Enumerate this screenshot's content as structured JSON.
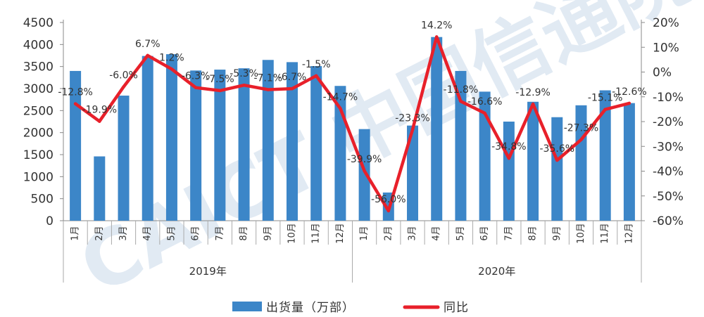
{
  "chart_data": {
    "type": "bar+line",
    "categories": [
      "1月",
      "2月",
      "3月",
      "4月",
      "5月",
      "6月",
      "7月",
      "8月",
      "9月",
      "10月",
      "11月",
      "12月",
      "1月",
      "2月",
      "3月",
      "4月",
      "5月",
      "6月",
      "7月",
      "8月",
      "9月",
      "10月",
      "11月",
      "12月"
    ],
    "groups": [
      {
        "label": "2019年",
        "count": 12
      },
      {
        "label": "2020年",
        "count": 12
      }
    ],
    "series": [
      {
        "name": "出货量（万部）",
        "type": "bar",
        "axis": "left",
        "color": "#3c86c8",
        "values": [
          3400,
          1460,
          2840,
          3740,
          3780,
          3410,
          3430,
          3460,
          3650,
          3600,
          3510,
          3060,
          2080,
          640,
          2160,
          4170,
          3400,
          2930,
          2250,
          2700,
          2350,
          2620,
          2960,
          2670
        ]
      },
      {
        "name": "同比",
        "type": "line",
        "axis": "right",
        "color": "#e8202a",
        "values": [
          -12.8,
          -19.9,
          -6.0,
          6.7,
          1.2,
          -6.3,
          -7.5,
          -5.3,
          -7.1,
          -6.7,
          -1.5,
          -14.7,
          -39.9,
          -56.0,
          -23.3,
          14.2,
          -11.8,
          -16.6,
          -34.8,
          -12.9,
          -35.6,
          -27.3,
          -15.1,
          -12.6
        ],
        "labels": [
          "-12.8%",
          "-19.9%",
          "-6.0%",
          "6.7%",
          "1.2%",
          "-6.3%",
          "-7.5%",
          "-5.3%",
          "-7.1%",
          "-6.7%",
          "-1.5%",
          "-14.7%",
          "-39.9%",
          "-56.0%",
          "-23.3%",
          "14.2%",
          "-11.8%",
          "-16.6%",
          "-34.8%",
          "-12.9%",
          "-35.6%",
          "-27.3%",
          "-15.1%",
          "-12.6%"
        ]
      }
    ],
    "y_left": {
      "min": 0,
      "max": 4500,
      "step": 500,
      "ticks": [
        "0",
        "500",
        "1000",
        "1500",
        "2000",
        "2500",
        "3000",
        "3500",
        "4000",
        "4500"
      ]
    },
    "y_right": {
      "min": -60,
      "max": 20,
      "step": 10,
      "ticks": [
        "-60%",
        "-50%",
        "-40%",
        "-30%",
        "-20%",
        "-10%",
        "0%",
        "10%",
        "20%"
      ]
    },
    "grid": false,
    "legend_position": "bottom-center",
    "legend": [
      {
        "label": "出货量（万部）",
        "kind": "bar"
      },
      {
        "label": "同比",
        "kind": "line"
      }
    ],
    "watermark": "CAICT 中国信通院"
  }
}
